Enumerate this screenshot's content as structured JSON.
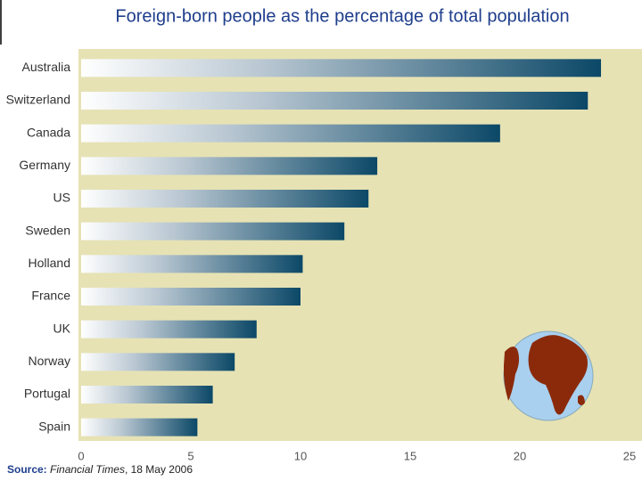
{
  "chart_data": {
    "type": "bar",
    "orientation": "horizontal",
    "title": "Foreign-born people as the percentage of total population",
    "categories": [
      "Australia",
      "Switzerland",
      "Canada",
      "Germany",
      "US",
      "Sweden",
      "Holland",
      "France",
      "UK",
      "Norway",
      "Portugal",
      "Spain"
    ],
    "values": [
      23.7,
      23.1,
      19.1,
      13.5,
      13.1,
      12.0,
      10.1,
      10.0,
      8.0,
      7.0,
      6.0,
      5.3
    ],
    "color": "#0b4867",
    "xlim": [
      0,
      25
    ],
    "xticks": [
      0,
      5,
      10,
      15,
      20,
      25
    ],
    "grid": false,
    "source": {
      "label": "Source:",
      "publication": "Financial Times",
      "date": ", 18 May 2006"
    }
  }
}
